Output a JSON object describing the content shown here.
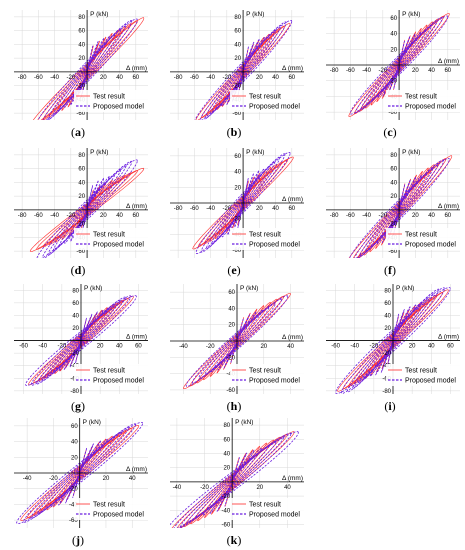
{
  "chart_data": [
    {
      "id": "a",
      "type": "line",
      "caption": "(a)",
      "ylabel": "P (kN)",
      "xlabel": "Δ (mm)",
      "xlim": [
        -90,
        75
      ],
      "ylim": [
        -70,
        90
      ],
      "xticks": [
        -80,
        -60,
        -40,
        -20,
        20,
        40,
        60
      ],
      "yticks": [
        -60,
        -40,
        -20,
        20,
        40,
        60,
        80
      ],
      "series": [
        {
          "name": "Test result",
          "max_disp": 70,
          "max_load": 78,
          "cycles": 9
        },
        {
          "name": "Proposed model",
          "max_disp": 62,
          "max_load": 74,
          "cycles": 9
        }
      ],
      "legend": "lower-right"
    },
    {
      "id": "b",
      "type": "line",
      "caption": "(b)",
      "ylabel": "P (kN)",
      "xlabel": "Δ (mm)",
      "xlim": [
        -90,
        75
      ],
      "ylim": [
        -70,
        90
      ],
      "xticks": [
        -80,
        -60,
        -40,
        -20,
        20,
        40,
        60
      ],
      "yticks": [
        -60,
        -40,
        -20,
        20,
        40,
        60,
        80
      ],
      "series": [
        {
          "name": "Test result",
          "max_disp": 58,
          "max_load": 70,
          "cycles": 9
        },
        {
          "name": "Proposed model",
          "max_disp": 60,
          "max_load": 72,
          "cycles": 9
        }
      ],
      "legend": "lower-right"
    },
    {
      "id": "c",
      "type": "line",
      "caption": "(c)",
      "ylabel": "P (kN)",
      "xlabel": "Δ (mm)",
      "xlim": [
        -90,
        75
      ],
      "ylim": [
        -70,
        70
      ],
      "xticks": [
        -80,
        -60,
        -40,
        -20,
        20,
        40,
        60
      ],
      "yticks": [
        -60,
        -40,
        -20,
        20,
        40,
        60
      ],
      "series": [
        {
          "name": "Test result",
          "max_disp": 62,
          "max_load": 65,
          "cycles": 9
        },
        {
          "name": "Proposed model",
          "max_disp": 60,
          "max_load": 60,
          "cycles": 9
        }
      ],
      "legend": "lower-right"
    },
    {
      "id": "d",
      "type": "line",
      "caption": "(d)",
      "ylabel": "P (kN)",
      "xlabel": "Δ (mm)",
      "xlim": [
        -90,
        75
      ],
      "ylim": [
        -70,
        90
      ],
      "xticks": [
        -80,
        -60,
        -40,
        -20,
        20,
        40,
        60
      ],
      "yticks": [
        -60,
        -40,
        -20,
        20,
        40,
        60,
        80
      ],
      "series": [
        {
          "name": "Test result",
          "max_disp": 70,
          "max_load": 60,
          "cycles": 9
        },
        {
          "name": "Proposed model",
          "max_disp": 62,
          "max_load": 70,
          "cycles": 9
        }
      ],
      "legend": "lower-right"
    },
    {
      "id": "e",
      "type": "line",
      "caption": "(e)",
      "ylabel": "P (kN)",
      "xlabel": "Δ (mm)",
      "xlim": [
        -90,
        75
      ],
      "ylim": [
        -70,
        70
      ],
      "xticks": [
        -80,
        -60,
        -40,
        -20,
        20,
        40,
        60
      ],
      "yticks": [
        -60,
        -40,
        -20,
        20,
        40,
        60
      ],
      "series": [
        {
          "name": "Test result",
          "max_disp": 62,
          "max_load": 58,
          "cycles": 9
        },
        {
          "name": "Proposed model",
          "max_disp": 58,
          "max_load": 62,
          "cycles": 9
        }
      ],
      "legend": "lower-right"
    },
    {
      "id": "f",
      "type": "line",
      "caption": "(f)",
      "ylabel": "P (kN)",
      "xlabel": "Δ (mm)",
      "xlim": [
        -90,
        75
      ],
      "ylim": [
        -70,
        90
      ],
      "xticks": [
        -80,
        -60,
        -40,
        -20,
        20,
        40,
        60
      ],
      "yticks": [
        -60,
        -40,
        -20,
        20,
        40,
        60,
        80
      ],
      "series": [
        {
          "name": "Test result",
          "max_disp": 65,
          "max_load": 78,
          "cycles": 9
        },
        {
          "name": "Proposed model",
          "max_disp": 62,
          "max_load": 72,
          "cycles": 9
        }
      ],
      "legend": "lower-right"
    },
    {
      "id": "g",
      "type": "line",
      "caption": "(g)",
      "ylabel": "P (kN)",
      "xlabel": "Δ (mm)",
      "xlim": [
        -70,
        70
      ],
      "ylim": [
        -85,
        90
      ],
      "xticks": [
        -60,
        -40,
        -20,
        20,
        40,
        60
      ],
      "yticks": [
        -80,
        -60,
        -40,
        -20,
        20,
        40,
        60,
        80
      ],
      "series": [
        {
          "name": "Test result",
          "max_disp": 55,
          "max_load": 70,
          "cycles": 10
        },
        {
          "name": "Proposed model",
          "max_disp": 58,
          "max_load": 72,
          "cycles": 10
        }
      ],
      "legend": "lower-right"
    },
    {
      "id": "h",
      "type": "line",
      "caption": "(h)",
      "ylabel": "P (kN)",
      "xlabel": "Δ (mm)",
      "xlim": [
        -50,
        50
      ],
      "ylim": [
        -65,
        70
      ],
      "xticks": [
        -40,
        -20,
        20,
        40
      ],
      "yticks": [
        -60,
        -40,
        -20,
        20,
        40,
        60
      ],
      "series": [
        {
          "name": "Test result",
          "max_disp": 40,
          "max_load": 58,
          "cycles": 8
        },
        {
          "name": "Proposed model",
          "max_disp": 38,
          "max_load": 52,
          "cycles": 8
        }
      ],
      "legend": "lower-right"
    },
    {
      "id": "i",
      "type": "line",
      "caption": "(i)",
      "ylabel": "P (kN)",
      "xlabel": "Δ (mm)",
      "xlim": [
        -70,
        70
      ],
      "ylim": [
        -85,
        90
      ],
      "xticks": [
        -60,
        -40,
        -20,
        20,
        40,
        60
      ],
      "yticks": [
        -80,
        -60,
        -40,
        -20,
        20,
        40,
        60,
        80
      ],
      "series": [
        {
          "name": "Test result",
          "max_disp": 58,
          "max_load": 80,
          "cycles": 10
        },
        {
          "name": "Proposed model",
          "max_disp": 60,
          "max_load": 85,
          "cycles": 10
        }
      ],
      "legend": "lower-right"
    },
    {
      "id": "j",
      "type": "line",
      "caption": "(j)",
      "ylabel": "P (kN)",
      "xlabel": "Δ (mm)",
      "xlim": [
        -50,
        52
      ],
      "ylim": [
        -70,
        70
      ],
      "xticks": [
        -40,
        -20,
        20,
        40
      ],
      "yticks": [
        -60,
        -40,
        -20,
        20,
        40,
        60
      ],
      "series": [
        {
          "name": "Test result",
          "max_disp": 45,
          "max_load": 60,
          "cycles": 9
        },
        {
          "name": "Proposed model",
          "max_disp": 48,
          "max_load": 62,
          "cycles": 9
        }
      ],
      "legend": "lower-right"
    },
    {
      "id": "k",
      "type": "line",
      "caption": "(k)",
      "ylabel": "P (kN)",
      "xlabel": "Δ (mm)",
      "xlim": [
        -45,
        52
      ],
      "ylim": [
        -65,
        90
      ],
      "xticks": [
        -40,
        -20,
        20,
        40
      ],
      "yticks": [
        -60,
        -40,
        -20,
        20,
        40,
        60,
        80
      ],
      "series": [
        {
          "name": "Test result",
          "max_disp": 45,
          "max_load": 70,
          "cycles": 9
        },
        {
          "name": "Proposed model",
          "max_disp": 48,
          "max_load": 68,
          "cycles": 9
        }
      ],
      "legend": "lower-right"
    }
  ],
  "colors": {
    "test": "#ff2a2a",
    "model": "#6a1de0",
    "axis": "#000000",
    "grid": "#d8d8d8"
  }
}
